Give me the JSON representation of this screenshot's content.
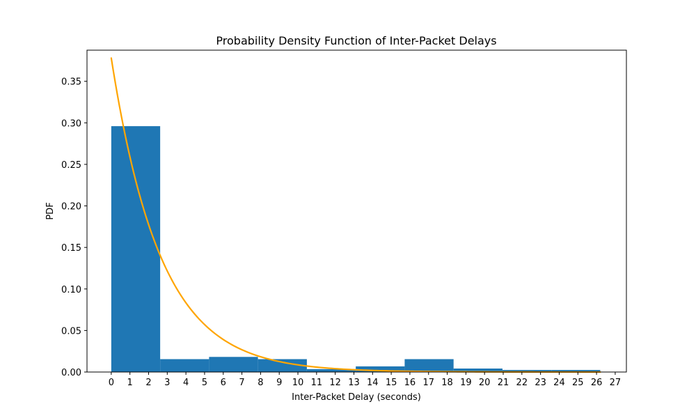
{
  "chart_data": {
    "type": "bar",
    "title": "Probability Density Function of Inter-Packet Delays",
    "xlabel": "Inter-Packet Delay (seconds)",
    "ylabel": "PDF",
    "xlim": [
      -1.3,
      27.6
    ],
    "ylim": [
      0,
      0.3875
    ],
    "xticks": [
      0,
      1,
      2,
      3,
      4,
      5,
      6,
      7,
      8,
      9,
      10,
      11,
      12,
      13,
      14,
      15,
      16,
      17,
      18,
      19,
      20,
      21,
      22,
      23,
      24,
      25,
      26,
      27
    ],
    "yticks": [
      0.0,
      0.05,
      0.1,
      0.15,
      0.2,
      0.25,
      0.3,
      0.35
    ],
    "ytick_labels": [
      "0.00",
      "0.05",
      "0.10",
      "0.15",
      "0.20",
      "0.25",
      "0.30",
      "0.35"
    ],
    "grid": false,
    "legend": "none",
    "histogram": {
      "bin_edges": [
        0,
        2.62,
        5.24,
        7.86,
        10.48,
        13.1,
        15.72,
        18.34,
        20.96,
        23.58,
        26.2
      ],
      "density": [
        0.296,
        0.0155,
        0.0182,
        0.0155,
        0.0035,
        0.0068,
        0.0155,
        0.0042,
        0.0025,
        0.0025
      ],
      "color": "#1f77b4"
    },
    "fit_curve": {
      "type": "exponential_pdf",
      "rate": 0.378,
      "x_range": [
        0,
        26.2
      ],
      "color": "#ffa500"
    }
  }
}
